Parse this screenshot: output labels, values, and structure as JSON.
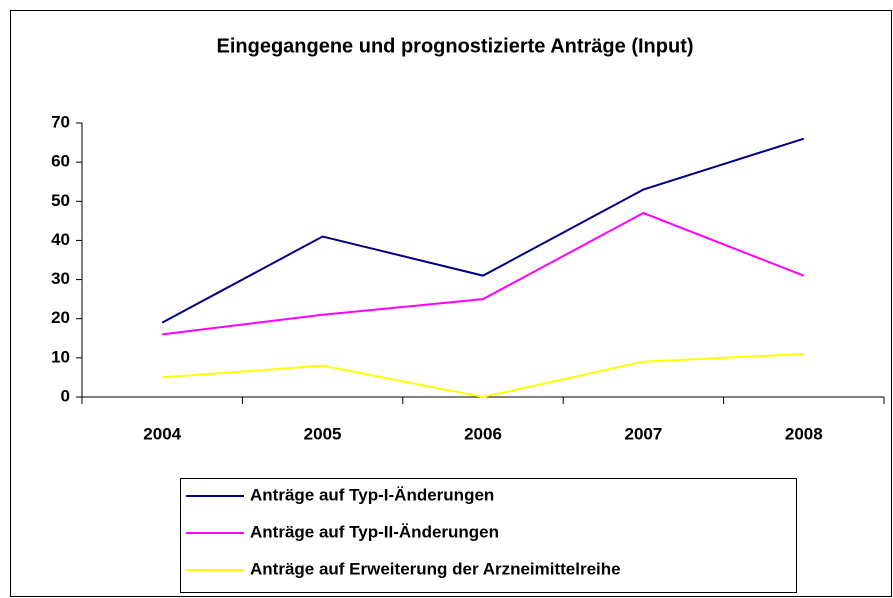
{
  "chart_data": {
    "type": "line",
    "title": "Eingegangene und prognostizierte Anträge (Input)",
    "categories": [
      "2004",
      "2005",
      "2006",
      "2007",
      "2008"
    ],
    "series": [
      {
        "name": "Anträge auf Typ-I-Änderungen",
        "color": "#000080",
        "values": [
          19,
          41,
          31,
          53,
          66
        ]
      },
      {
        "name": "Anträge auf Typ-II-Änderungen",
        "color": "#ff00ff",
        "values": [
          16,
          21,
          25,
          47,
          31
        ]
      },
      {
        "name": "Anträge auf Erweiterung der Arzneimittelreihe",
        "color": "#ffff00",
        "values": [
          5,
          8,
          0,
          9,
          11
        ]
      }
    ],
    "ylim": [
      0,
      70
    ],
    "yticks": [
      0,
      10,
      20,
      30,
      40,
      50,
      60,
      70
    ],
    "grid": false,
    "legend": "bottom"
  }
}
